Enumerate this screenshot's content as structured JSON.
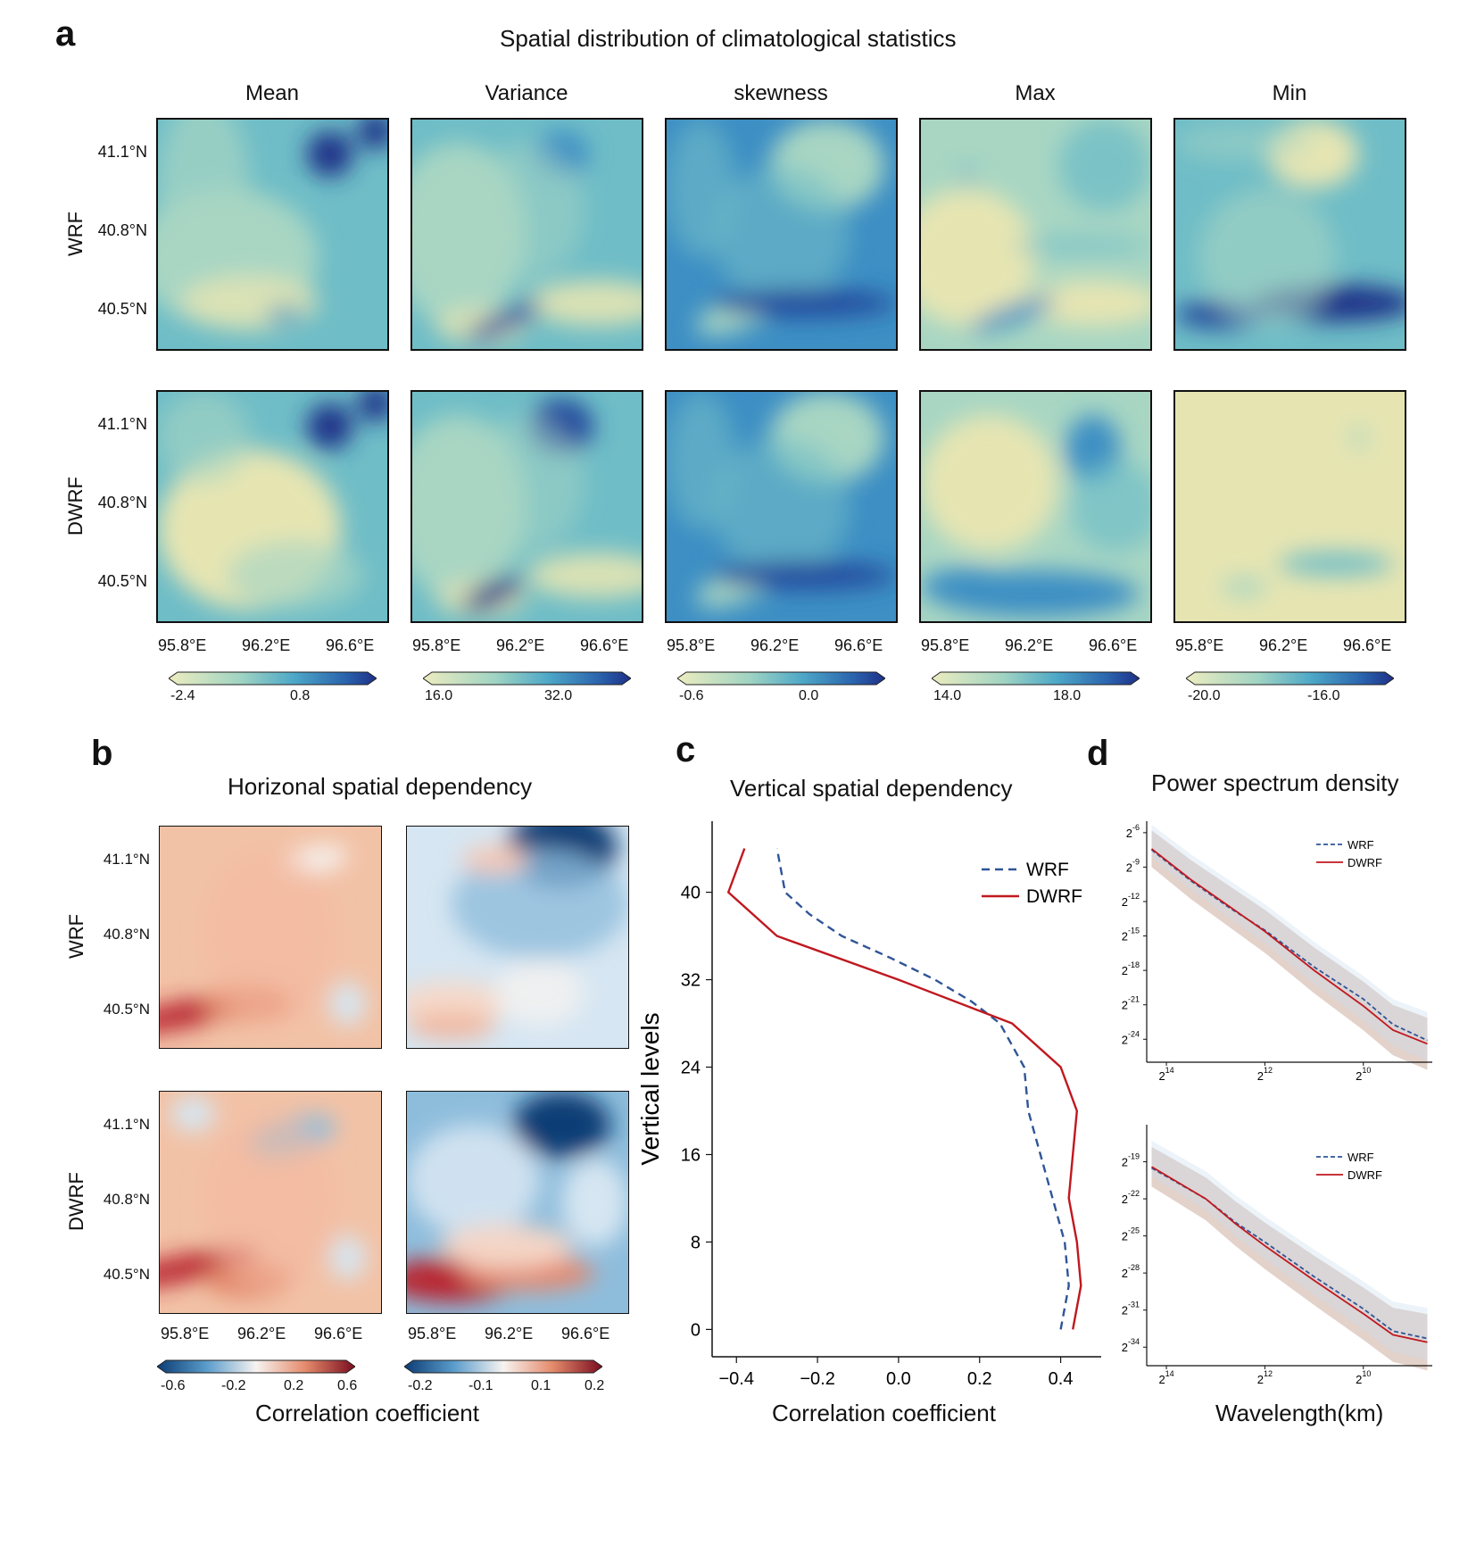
{
  "panel_a": {
    "letter": "a",
    "title": "Spatial distribution of climatological statistics",
    "columns": [
      "Mean",
      "Variance",
      "skewness",
      "Max",
      "Min"
    ],
    "rows": [
      "WRF",
      "DWRF"
    ],
    "lat_ticks": [
      "41.1°N",
      "40.8°N",
      "40.5°N"
    ],
    "lon_ticks": [
      "95.8°E",
      "96.2°E",
      "96.6°E"
    ],
    "colorbars": [
      {
        "low": "-2.4",
        "high": "0.8"
      },
      {
        "low": "16.0",
        "high": "32.0"
      },
      {
        "low": "-0.6",
        "high": "0.0"
      },
      {
        "low": "14.0",
        "high": "18.0"
      },
      {
        "low": "-20.0",
        "high": "-16.0"
      }
    ]
  },
  "panel_b": {
    "letter": "b",
    "title": "Horizonal spatial dependency",
    "rows": [
      "WRF",
      "DWRF"
    ],
    "lat_ticks": [
      "41.1°N",
      "40.8°N",
      "40.5°N"
    ],
    "lon_ticks": [
      "95.8°E",
      "96.2°E",
      "96.6°E"
    ],
    "colorbars": [
      {
        "ticks": [
          "-0.6",
          "-0.2",
          "0.2",
          "0.6"
        ]
      },
      {
        "ticks": [
          "-0.2",
          "-0.1",
          "0.1",
          "0.2"
        ]
      }
    ],
    "xlabel": "Correlation coefficient"
  },
  "panel_c": {
    "letter": "c",
    "title": "Vertical spatial dependency",
    "xlabel": "Correlation coefficient",
    "ylabel": "Vertical levels"
  },
  "panel_d": {
    "letter": "d",
    "title": "Power spectrum density",
    "xlabel": "Wavelength(km)",
    "legend": [
      "WRF",
      "DWRF"
    ],
    "x_tick_exps": [
      "14",
      "12",
      "10"
    ],
    "top_y_exps": [
      "-6",
      "-9",
      "-12",
      "-15",
      "-18",
      "-21",
      "-24"
    ],
    "bottom_y_exps": [
      "-19",
      "-22",
      "-25",
      "-28",
      "-31",
      "-34"
    ]
  },
  "chart_data": [
    {
      "type": "line",
      "title": "Vertical spatial dependency",
      "xlabel": "Correlation coefficient",
      "ylabel": "Vertical levels",
      "xlim": [
        -0.46,
        0.5
      ],
      "ylim": [
        -2.5,
        46.5
      ],
      "xticks": [
        -0.4,
        -0.2,
        0.0,
        0.2,
        0.4
      ],
      "xtick_labels": [
        "−0.4",
        "−0.2",
        "0.0",
        "0.2",
        "0.4"
      ],
      "yticks": [
        0,
        8,
        16,
        24,
        32,
        40
      ],
      "ytick_labels": [
        "0",
        "8",
        "16",
        "24",
        "32",
        "40"
      ],
      "legend_position": "top-right",
      "series": [
        {
          "name": "WRF",
          "color": "#2f5597",
          "dash": "dashed",
          "points": [
            [
              0.4,
              0
            ],
            [
              0.42,
              4
            ],
            [
              0.41,
              8
            ],
            [
              0.38,
              12
            ],
            [
              0.35,
              16
            ],
            [
              0.32,
              20
            ],
            [
              0.31,
              24
            ],
            [
              0.25,
              28
            ],
            [
              0.18,
              30
            ],
            [
              0.09,
              32
            ],
            [
              -0.02,
              34
            ],
            [
              -0.14,
              36
            ],
            [
              -0.22,
              38
            ],
            [
              -0.28,
              40
            ],
            [
              -0.3,
              44
            ]
          ]
        },
        {
          "name": "DWRF",
          "color": "#c0181f",
          "dash": "solid",
          "points": [
            [
              0.43,
              0
            ],
            [
              0.45,
              4
            ],
            [
              0.44,
              8
            ],
            [
              0.42,
              12
            ],
            [
              0.43,
              16
            ],
            [
              0.44,
              20
            ],
            [
              0.4,
              24
            ],
            [
              0.28,
              28
            ],
            [
              0.0,
              32
            ],
            [
              -0.3,
              36
            ],
            [
              -0.42,
              40
            ],
            [
              -0.38,
              44
            ]
          ]
        }
      ]
    },
    {
      "type": "line",
      "title": "Power spectrum density (WRF row)",
      "xlabel": "Wavelength(km)",
      "x_scale": "log2, decreasing",
      "xlim_log2": [
        14.4,
        8.6
      ],
      "ylim_log2": [
        -26,
        -5
      ],
      "series": [
        {
          "name": "WRF",
          "color": "#2f5597",
          "dash": "dashed",
          "points": [
            [
              14.3,
              -7.5
            ],
            [
              13.5,
              -10.2
            ],
            [
              12.7,
              -12.6
            ],
            [
              12,
              -14.5
            ],
            [
              11,
              -17.7
            ],
            [
              10,
              -20.5
            ],
            [
              9.4,
              -22.7
            ],
            [
              8.7,
              -24.1
            ]
          ]
        },
        {
          "name": "DWRF",
          "color": "#c0181f",
          "dash": "solid",
          "points": [
            [
              14.3,
              -7.4
            ],
            [
              13.5,
              -10.1
            ],
            [
              12.7,
              -12.5
            ],
            [
              12,
              -14.6
            ],
            [
              11,
              -18.0
            ],
            [
              10,
              -21.1
            ],
            [
              9.4,
              -23.2
            ],
            [
              8.7,
              -24.4
            ]
          ]
        }
      ]
    },
    {
      "type": "line",
      "title": "Power spectrum density (DWRF row)",
      "xlabel": "Wavelength(km)",
      "x_scale": "log2, decreasing",
      "xlim_log2": [
        14.4,
        8.6
      ],
      "ylim_log2": [
        -35.5,
        -16
      ],
      "series": [
        {
          "name": "WRF",
          "color": "#2f5597",
          "dash": "dashed",
          "points": [
            [
              14.3,
              -19.5
            ],
            [
              13.2,
              -22
            ],
            [
              12.6,
              -23.9
            ],
            [
              12,
              -25.5
            ],
            [
              11,
              -28.3
            ],
            [
              10,
              -30.9
            ],
            [
              9.4,
              -32.7
            ],
            [
              8.7,
              -33.3
            ]
          ]
        },
        {
          "name": "DWRF",
          "color": "#c0181f",
          "dash": "solid",
          "points": [
            [
              14.3,
              -19.4
            ],
            [
              13.2,
              -22
            ],
            [
              12.6,
              -24.0
            ],
            [
              12,
              -25.8
            ],
            [
              11,
              -28.6
            ],
            [
              10,
              -31.3
            ],
            [
              9.4,
              -33.0
            ],
            [
              8.7,
              -33.6
            ]
          ]
        }
      ]
    }
  ]
}
